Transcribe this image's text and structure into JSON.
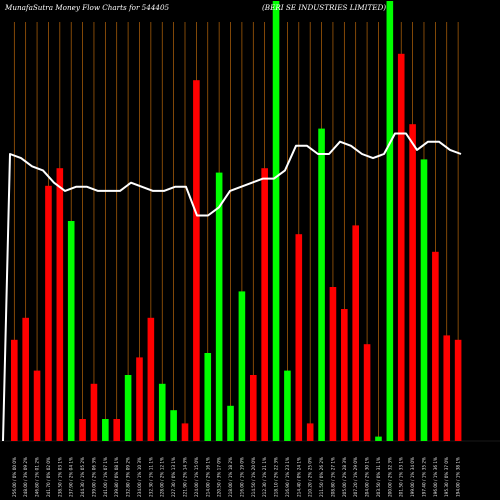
{
  "header": {
    "brand": "MunafaSutra  Money Flow  Charts for 544405",
    "company": "(BERI                              SE INDUSTRIES LIMITED)"
  },
  "colors": {
    "background": "#000000",
    "up": "#00ff00",
    "down": "#ff0000",
    "grid": "#b8660b",
    "line": "#ffffff"
  },
  "chart_data": {
    "type": "bar",
    "description_series": [
      "money flow bars",
      "price line"
    ],
    "x_labels": [
      "Fri 01 Mar 2024",
      "Thu 29 Feb 2024",
      "Wed 28 Feb 2024",
      "Tue 27 Feb 2024",
      "Mon 26 Feb 2024",
      "Fri 23 Feb 2024",
      "Thu 22 Feb 2024",
      "Wed 21 Feb 2024",
      "Tue 20 Feb 2024",
      "Mon 19 Feb 2024",
      "Fri 16 Feb 2024",
      "Thu 15 Feb 2024",
      "Wed 14 Feb 2024",
      "Tue 13 Feb 2024",
      "Mon 12 Feb 2024",
      "Fri 09 Feb 2024",
      "Thu 08 Feb 2024",
      "Wed 07 Feb 2024",
      "Tue 06 Feb 2024",
      "Mon 05 Feb 2024",
      "Fri 02 Feb 2024",
      "Thu 01 Feb 2024",
      "Wed 31 Jan 2024",
      "Tue 30 Jan 2024",
      "Mon 29 Jan 2024",
      "Thu 25 Jan 2024",
      "Wed 24 Jan 2024",
      "Tue 23 Jan 2024",
      "Mon 22 Jan 2024",
      "Fri 19 Jan 2024",
      "Thu 18 Jan 2024",
      "Wed 17 Jan 2024",
      "Tue 16 Jan 2024",
      "Mon 15 Jan 2024",
      "Fri 12 Jan 2024",
      "Thu 11 Jan 2024",
      "Wed 10 Jan 2024",
      "Tue 09 Jan 2024",
      "Mon 08 Jan 2024",
      "Fri 05 Jan 2024",
      "Thu 04 Jan 2024",
      "Wed 03 Jan 2024",
      "Tue 02 Jan 2024",
      "Mon 01 Jan 2024",
      "Fri 29 Dec 2023",
      "Thu 28 Dec 2023",
      "Wed 27 Dec 2023",
      "Tue 26 Dec 2023",
      "Fri 22 Dec 2023",
      "Thu 21 Dec 2023",
      "Wed 20 Dec 2023",
      "Tue 19 Dec 2023",
      "Mon 18 Dec 2023",
      "Fri 15 Dec 2023",
      "Thu 14 Dec 2023"
    ],
    "bars": [
      {
        "dir": "down",
        "value": 0.23
      },
      {
        "dir": "down",
        "value": 0.28
      },
      {
        "dir": "down",
        "value": 0.16
      },
      {
        "dir": "down",
        "value": 0.58
      },
      {
        "dir": "down",
        "value": 0.62
      },
      {
        "dir": "up",
        "value": 0.5
      },
      {
        "dir": "down",
        "value": 0.05
      },
      {
        "dir": "down",
        "value": 0.13
      },
      {
        "dir": "up",
        "value": 0.05
      },
      {
        "dir": "down",
        "value": 0.05
      },
      {
        "dir": "up",
        "value": 0.15
      },
      {
        "dir": "down",
        "value": 0.19
      },
      {
        "dir": "down",
        "value": 0.28
      },
      {
        "dir": "up",
        "value": 0.13
      },
      {
        "dir": "up",
        "value": 0.07
      },
      {
        "dir": "down",
        "value": 0.04
      },
      {
        "dir": "down",
        "value": 0.82
      },
      {
        "dir": "up",
        "value": 0.2
      },
      {
        "dir": "up",
        "value": 0.61
      },
      {
        "dir": "up",
        "value": 0.08
      },
      {
        "dir": "up",
        "value": 0.34
      },
      {
        "dir": "down",
        "value": 0.15
      },
      {
        "dir": "down",
        "value": 0.62
      },
      {
        "dir": "up",
        "value": 1.0
      },
      {
        "dir": "up",
        "value": 0.16
      },
      {
        "dir": "down",
        "value": 0.47
      },
      {
        "dir": "down",
        "value": 0.04
      },
      {
        "dir": "up",
        "value": 0.71
      },
      {
        "dir": "down",
        "value": 0.35
      },
      {
        "dir": "down",
        "value": 0.3
      },
      {
        "dir": "down",
        "value": 0.49
      },
      {
        "dir": "down",
        "value": 0.22
      },
      {
        "dir": "up",
        "value": 0.01
      },
      {
        "dir": "up",
        "value": 1.0
      },
      {
        "dir": "down",
        "value": 0.88
      },
      {
        "dir": "down",
        "value": 0.72
      },
      {
        "dir": "up",
        "value": 0.64
      },
      {
        "dir": "down",
        "value": 0.43
      },
      {
        "dir": "down",
        "value": 0.24
      },
      {
        "dir": "down",
        "value": 0.23
      }
    ],
    "line": [
      0.0,
      0.7,
      0.69,
      0.67,
      0.66,
      0.63,
      0.61,
      0.62,
      0.62,
      0.61,
      0.61,
      0.61,
      0.63,
      0.62,
      0.61,
      0.61,
      0.62,
      0.62,
      0.55,
      0.55,
      0.57,
      0.61,
      0.62,
      0.63,
      0.64,
      0.64,
      0.66,
      0.72,
      0.72,
      0.7,
      0.7,
      0.73,
      0.72,
      0.7,
      0.69,
      0.7,
      0.75,
      0.75,
      0.71,
      0.73,
      0.73,
      0.71,
      0.7
    ],
    "tick_labels": [
      "256.00 / 0% 00 0%",
      "248.00 / 3% 09 2%",
      "246.80 / 1% 01 2%",
      "241.70 / 0% 02 0%",
      "238.50 / 1% 03 1%",
      "237.90 / 2% 04 1%",
      "244.30 / 1% 05 2%",
      "239.00 / 2% 06 3%",
      "241.00 / 1% 07 1%",
      "239.80 / 0% 08 1%",
      "232.80 / 3% 09 2%",
      "234.00 / 1% 10 3%",
      "232.30 / 1% 11 1%",
      "228.00 / 2% 12 1%",
      "227.30 / 0% 13 1%",
      "221.90 / 2% 14 3%",
      "224.00 / 1% 15 0%",
      "214.00 / 2% 16 1%",
      "220.50 / 3% 17 0%",
      "218.00 / 1% 18 2%",
      "216.00 / 1% 19 0%",
      "214.50 / 1% 20 0%",
      "212.30 / 1% 21 1%",
      "218.10 / 2% 22 3%",
      "216.90 / 1% 23 1%",
      "214.40 / 0% 24 1%",
      "210.20 / 2% 25 0%",
      "211.50 / 0% 26 2%",
      "208.80 / 1% 27 1%",
      "205.00 / 2% 28 3%",
      "207.20 / 1% 29 0%",
      "204.00 / 2% 30 1%",
      "203.50 / 0% 31 1%",
      "200.00 / 2% 32 3%",
      "201.50 / 1% 33 1%",
      "199.00 / 1% 34 0%",
      "197.40 / 1% 35 2%",
      "196.00 / 1% 36 1%",
      "195.30 / 0% 37 0%",
      "194.00 / 1% 38 1%"
    ],
    "ylim": [
      0,
      1
    ]
  }
}
